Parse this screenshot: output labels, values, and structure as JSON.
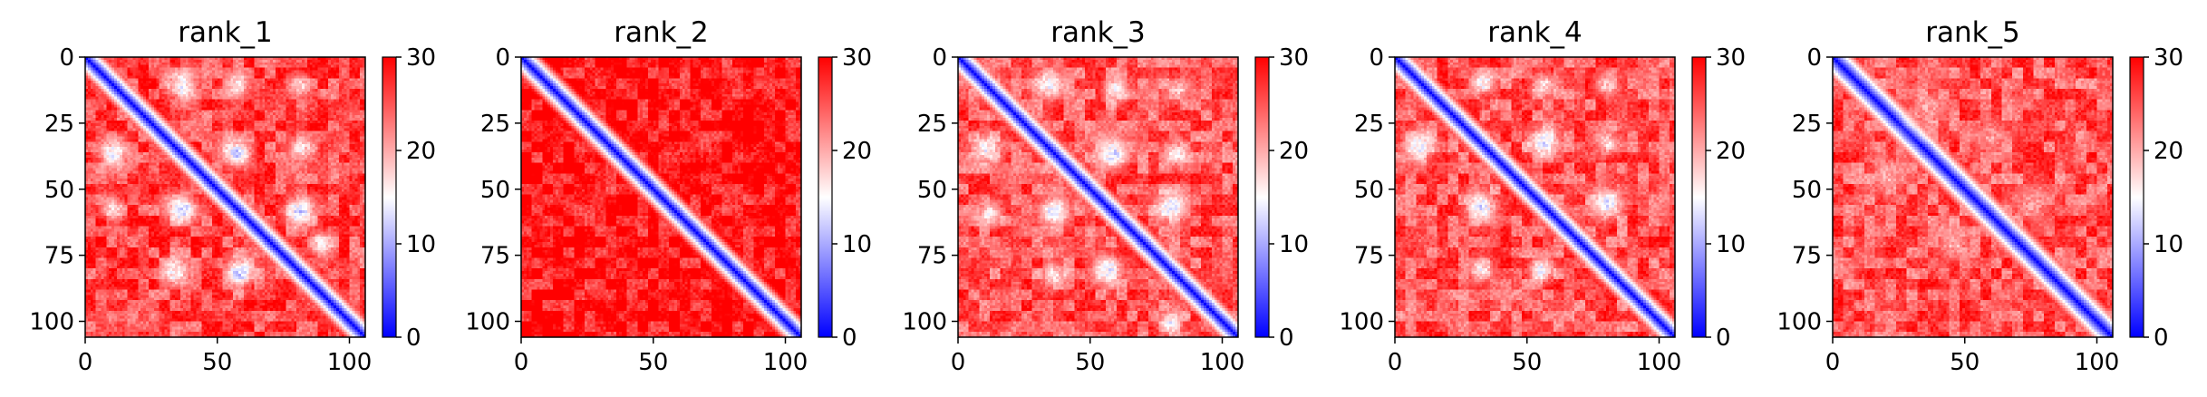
{
  "chart_data": [
    {
      "type": "heatmap",
      "title": "rank_1",
      "n": 106,
      "xticks": [
        0,
        50,
        100
      ],
      "yticks": [
        0,
        25,
        50,
        75,
        100
      ],
      "colorbar": {
        "range": [
          0,
          30
        ],
        "ticks": [
          0,
          10,
          20,
          30
        ],
        "colormap": "bwr"
      },
      "diag_width": 5,
      "base": 26,
      "contacts": [
        {
          "x": 36,
          "y": 10,
          "value": 14,
          "r": 5
        },
        {
          "x": 57,
          "y": 10,
          "value": 16,
          "r": 4
        },
        {
          "x": 81,
          "y": 10,
          "value": 18,
          "r": 4
        },
        {
          "x": 10,
          "y": 36,
          "value": 14,
          "r": 5
        },
        {
          "x": 36,
          "y": 57,
          "value": 12,
          "r": 5
        },
        {
          "x": 57,
          "y": 36,
          "value": 12,
          "r": 5
        },
        {
          "x": 10,
          "y": 57,
          "value": 17,
          "r": 4
        },
        {
          "x": 81,
          "y": 34,
          "value": 16,
          "r": 4
        },
        {
          "x": 34,
          "y": 81,
          "value": 15,
          "r": 5
        },
        {
          "x": 58,
          "y": 81,
          "value": 12,
          "r": 5
        },
        {
          "x": 81,
          "y": 58,
          "value": 12,
          "r": 5
        },
        {
          "x": 89,
          "y": 70,
          "value": 16,
          "r": 4
        }
      ]
    },
    {
      "type": "heatmap",
      "title": "rank_2",
      "n": 106,
      "xticks": [
        0,
        50,
        100
      ],
      "yticks": [
        0,
        25,
        50,
        75,
        100
      ],
      "colorbar": {
        "range": [
          0,
          30
        ],
        "ticks": [
          0,
          10,
          20,
          30
        ],
        "colormap": "bwr"
      },
      "diag_width": 5,
      "base": 29,
      "contacts": []
    },
    {
      "type": "heatmap",
      "title": "rank_3",
      "n": 106,
      "xticks": [
        0,
        50,
        100
      ],
      "yticks": [
        0,
        25,
        50,
        75,
        100
      ],
      "colorbar": {
        "range": [
          0,
          30
        ],
        "ticks": [
          0,
          10,
          20,
          30
        ],
        "colormap": "bwr"
      },
      "diag_width": 5,
      "base": 25,
      "contacts": [
        {
          "x": 34,
          "y": 10,
          "value": 15,
          "r": 5
        },
        {
          "x": 59,
          "y": 12,
          "value": 15,
          "r": 4
        },
        {
          "x": 83,
          "y": 12,
          "value": 18,
          "r": 4
        },
        {
          "x": 10,
          "y": 34,
          "value": 15,
          "r": 5
        },
        {
          "x": 36,
          "y": 58,
          "value": 13,
          "r": 5
        },
        {
          "x": 58,
          "y": 36,
          "value": 13,
          "r": 5
        },
        {
          "x": 12,
          "y": 59,
          "value": 16,
          "r": 4
        },
        {
          "x": 82,
          "y": 36,
          "value": 16,
          "r": 4
        },
        {
          "x": 36,
          "y": 82,
          "value": 16,
          "r": 4
        },
        {
          "x": 80,
          "y": 56,
          "value": 13,
          "r": 5
        },
        {
          "x": 56,
          "y": 80,
          "value": 14,
          "r": 5
        },
        {
          "x": 80,
          "y": 100,
          "value": 15,
          "r": 4
        }
      ]
    },
    {
      "type": "heatmap",
      "title": "rank_4",
      "n": 106,
      "xticks": [
        0,
        50,
        100
      ],
      "yticks": [
        0,
        25,
        50,
        75,
        100
      ],
      "colorbar": {
        "range": [
          0,
          30
        ],
        "ticks": [
          0,
          10,
          20,
          30
        ],
        "colormap": "bwr"
      },
      "diag_width": 5,
      "base": 25,
      "contacts": [
        {
          "x": 33,
          "y": 9,
          "value": 15,
          "r": 4
        },
        {
          "x": 56,
          "y": 10,
          "value": 17,
          "r": 4
        },
        {
          "x": 80,
          "y": 10,
          "value": 18,
          "r": 4
        },
        {
          "x": 9,
          "y": 33,
          "value": 14,
          "r": 5
        },
        {
          "x": 56,
          "y": 32,
          "value": 13,
          "r": 5
        },
        {
          "x": 32,
          "y": 56,
          "value": 13,
          "r": 5
        },
        {
          "x": 80,
          "y": 55,
          "value": 13,
          "r": 5
        },
        {
          "x": 55,
          "y": 80,
          "value": 14,
          "r": 4
        },
        {
          "x": 32,
          "y": 80,
          "value": 16,
          "r": 4
        },
        {
          "x": 80,
          "y": 32,
          "value": 17,
          "r": 4
        }
      ]
    },
    {
      "type": "heatmap",
      "title": "rank_5",
      "n": 106,
      "xticks": [
        0,
        50,
        100
      ],
      "yticks": [
        0,
        25,
        50,
        75,
        100
      ],
      "colorbar": {
        "range": [
          0,
          30
        ],
        "ticks": [
          0,
          10,
          20,
          30
        ],
        "colormap": "bwr"
      },
      "diag_width": 6,
      "base": 25,
      "contacts": [
        {
          "x": 35,
          "y": 20,
          "value": 20,
          "r": 6
        },
        {
          "x": 60,
          "y": 30,
          "value": 21,
          "r": 6
        },
        {
          "x": 20,
          "y": 45,
          "value": 20,
          "r": 6
        },
        {
          "x": 45,
          "y": 70,
          "value": 20,
          "r": 6
        },
        {
          "x": 75,
          "y": 55,
          "value": 21,
          "r": 6
        }
      ]
    }
  ]
}
